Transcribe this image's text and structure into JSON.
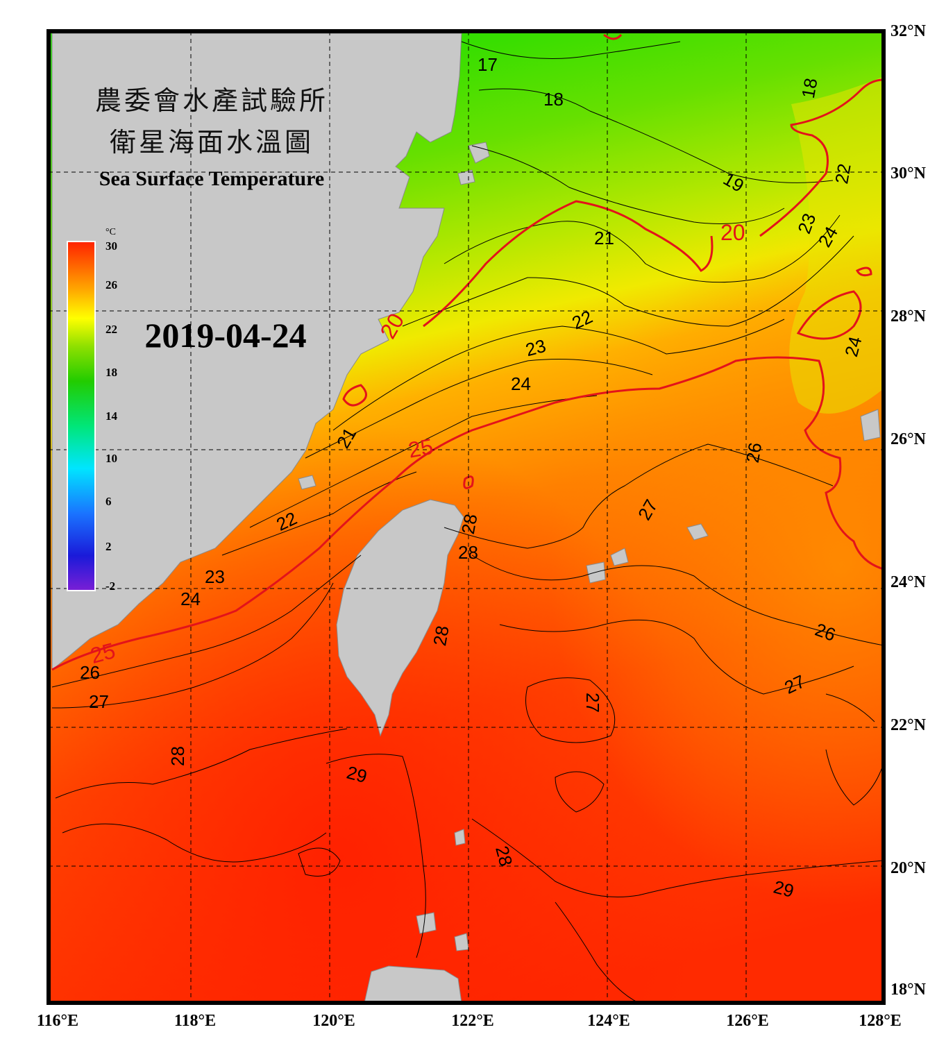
{
  "title": {
    "line1": "農委會水產試驗所",
    "line2": "衛星海面水溫圖",
    "english": "Sea Surface Temperature"
  },
  "date": "2019-04-24",
  "colorbar": {
    "unit": "°C",
    "range": [
      -2,
      30
    ],
    "ticks": [
      "30",
      "26",
      "22",
      "18",
      "14",
      "10",
      "6",
      "2",
      "-2"
    ],
    "colors": [
      "#7a1fd6",
      "#1a1ad9",
      "#1a73ff",
      "#00e5ff",
      "#00e67a",
      "#22cc00",
      "#8fe000",
      "#ffff00",
      "#ffaa00",
      "#ff6600",
      "#ff2200"
    ]
  },
  "axes": {
    "lon_labels": [
      "116°E",
      "118°E",
      "120°E",
      "122°E",
      "124°E",
      "126°E",
      "128°E"
    ],
    "lat_labels": [
      "32°N",
      "30°N",
      "28°N",
      "26°N",
      "24°N",
      "22°N",
      "20°N",
      "18°N"
    ],
    "lon_range": [
      116,
      128
    ],
    "lat_range": [
      18,
      32
    ]
  },
  "contour_labels": [
    "17",
    "18",
    "18",
    "19",
    "20",
    "20",
    "21",
    "21",
    "22",
    "22",
    "22",
    "23",
    "23",
    "23",
    "24",
    "24",
    "24",
    "24",
    "25",
    "25",
    "26",
    "26",
    "26",
    "27",
    "27",
    "27",
    "27",
    "28",
    "28",
    "28",
    "28",
    "28",
    "29",
    "29"
  ],
  "colors": {
    "land": "#c8c8c8",
    "frame": "#000000",
    "isotherm_highlight": "#e3131a",
    "isotherm": "#000000"
  }
}
